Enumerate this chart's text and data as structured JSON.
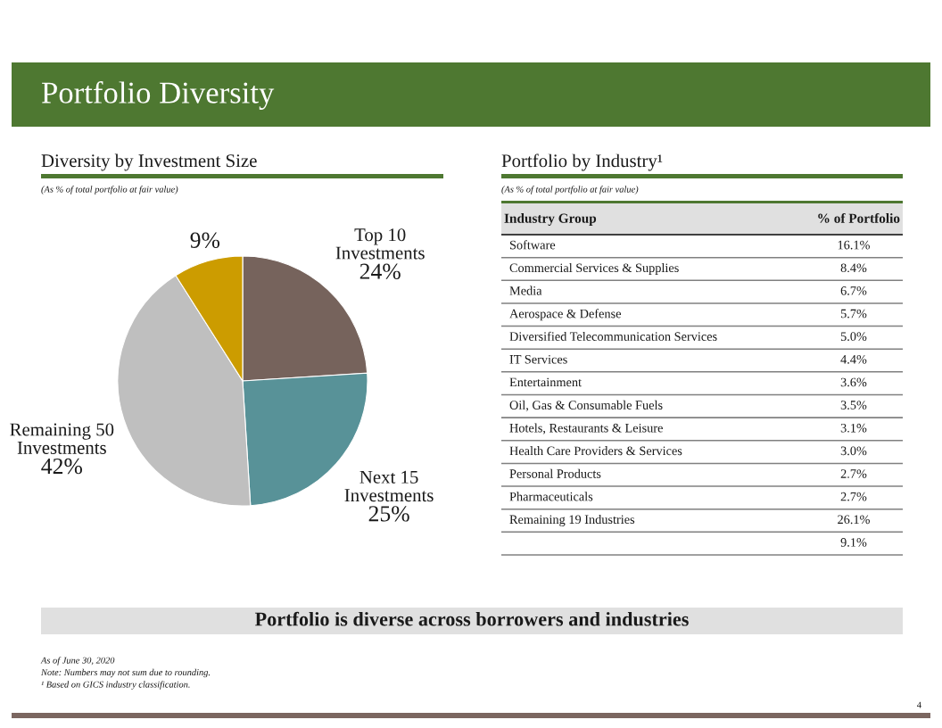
{
  "chart_data": [
    {
      "type": "pie",
      "title": "Diversity by Investment Size",
      "subtitle": "(As % of total portfolio at fair value)",
      "categories": [
        "Top 10 Investments",
        "Next 15 Investments",
        "Remaining 50 Investments",
        null
      ],
      "values": [
        24,
        25,
        42,
        9
      ],
      "colors": [
        "#76635c",
        "#589298",
        "#bfbfbf",
        "#cc9c00"
      ],
      "value_labels": [
        "24%",
        "25%",
        "42%",
        "9%"
      ],
      "annotations": [
        "Portfolio Diversity",
        "Portfolio is diverse across borrowers and industries",
        "As of June 30, 2020",
        "Note: Numbers may not sum due to rounding.",
        "¹ Based on GICS industry classification.",
        "4"
      ]
    },
    {
      "type": "other",
      "title": "Portfolio by Industry¹",
      "subtitle": "(As % of total portfolio at fair value)",
      "xlabel": "Industry Group",
      "ylabel": "% of Portfolio",
      "categories": [
        "Software",
        "Commercial Services & Supplies",
        "Media",
        "Aerospace & Defense",
        "Diversified Telecommunication Services",
        "IT Services",
        "Entertainment",
        "Oil, Gas & Consumable Fuels",
        "Hotels, Restaurants & Leisure",
        "Health Care Providers & Services",
        "Personal Products",
        "Pharmaceuticals",
        "Remaining 19 Industries",
        null
      ],
      "values": [
        16.1,
        8.4,
        6.7,
        5.7,
        5.0,
        4.4,
        3.6,
        3.5,
        3.1,
        3.0,
        2.7,
        2.7,
        26.1,
        9.1
      ],
      "value_labels": [
        "16.1%",
        "8.4%",
        "6.7%",
        "5.7%",
        "5.0%",
        "4.4%",
        "3.6%",
        "3.5%",
        "3.1%",
        "3.0%",
        "2.7%",
        "2.7%",
        "26.1%",
        "9.1%"
      ]
    }
  ]
}
